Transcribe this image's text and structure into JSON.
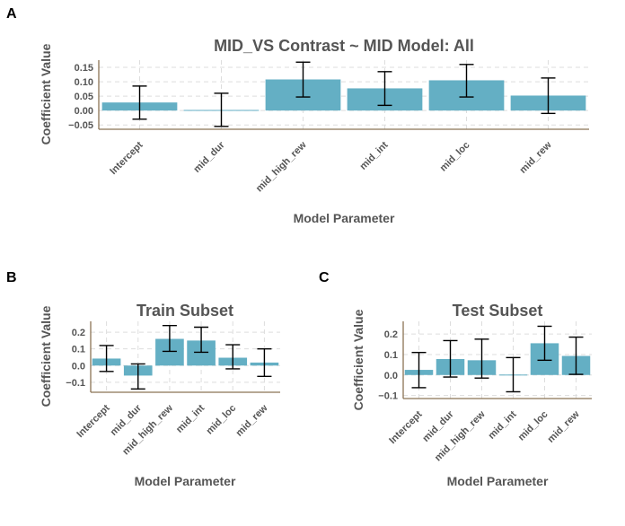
{
  "chart_data": [
    {
      "panel": "A",
      "type": "bar",
      "title": "MID_VS Contrast ~ MID Model: All",
      "xlabel": "Model Parameter",
      "ylabel": "Coefficient Value",
      "categories": [
        "Intercept",
        "mid_dur",
        "mid_high_rew",
        "mid_int",
        "mid_loc",
        "mid_rew"
      ],
      "values": [
        0.028,
        0.002,
        0.108,
        0.077,
        0.105,
        0.052
      ],
      "err_low": [
        -0.03,
        -0.055,
        0.047,
        0.018,
        0.047,
        -0.01
      ],
      "err_high": [
        0.085,
        0.06,
        0.168,
        0.135,
        0.16,
        0.113
      ],
      "yticks": [
        -0.05,
        0.0,
        0.05,
        0.1,
        0.15
      ],
      "ytick_labels": [
        "−0.05",
        "0.00",
        "0.05",
        "0.10",
        "0.15"
      ],
      "ylim": [
        -0.065,
        0.175
      ],
      "grid": true
    },
    {
      "panel": "B",
      "type": "bar",
      "title": "Train Subset",
      "xlabel": "Model Parameter",
      "ylabel": "Coefficient Value",
      "categories": [
        "Intercept",
        "mid_dur",
        "mid_high_rew",
        "mid_int",
        "mid_loc",
        "mid_rew"
      ],
      "values": [
        0.042,
        -0.06,
        0.16,
        0.15,
        0.047,
        0.018
      ],
      "err_low": [
        -0.035,
        -0.14,
        0.085,
        0.08,
        -0.02,
        -0.065
      ],
      "err_high": [
        0.12,
        0.01,
        0.24,
        0.23,
        0.125,
        0.1
      ],
      "yticks": [
        -0.1,
        0.0,
        0.1,
        0.2
      ],
      "ytick_labels": [
        "−0.1",
        "0.0",
        "0.1",
        "0.2"
      ],
      "ylim": [
        -0.16,
        0.265
      ],
      "grid": true
    },
    {
      "panel": "C",
      "type": "bar",
      "title": "Test Subset",
      "xlabel": "Model Parameter",
      "ylabel": "Coefficient Value",
      "categories": [
        "Intercept",
        "mid_dur",
        "mid_high_rew",
        "mid_int",
        "mid_loc",
        "mid_rew"
      ],
      "values": [
        0.025,
        0.078,
        0.072,
        0.002,
        0.155,
        0.093
      ],
      "err_low": [
        -0.062,
        -0.01,
        -0.015,
        -0.082,
        0.072,
        0.003
      ],
      "err_high": [
        0.11,
        0.168,
        0.175,
        0.085,
        0.238,
        0.185
      ],
      "yticks": [
        -0.1,
        0.0,
        0.1,
        0.2
      ],
      "ytick_labels": [
        "−0.1",
        "0.0",
        "0.1",
        "0.2"
      ],
      "ylim": [
        -0.115,
        0.262
      ],
      "grid": true
    }
  ]
}
